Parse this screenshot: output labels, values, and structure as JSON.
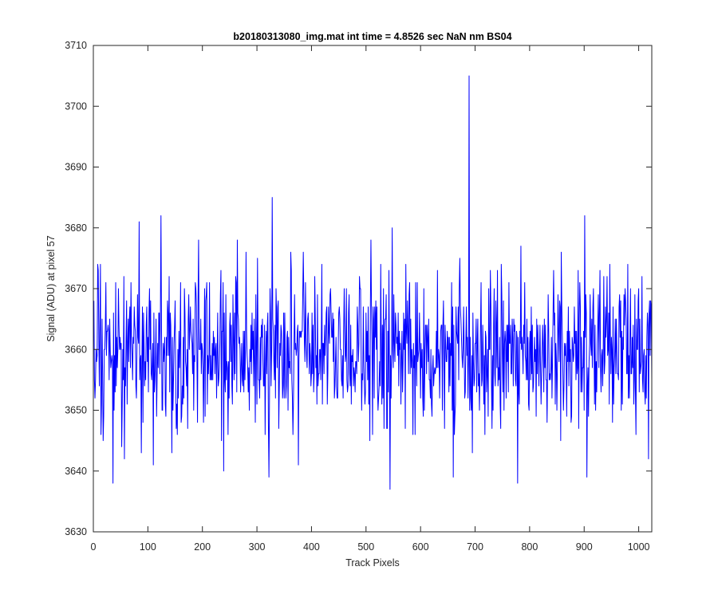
{
  "chart_data": {
    "type": "line",
    "title": "b20180313080_img.mat int time = 4.8526 sec  NaN nm BS04",
    "xlabel": "Track Pixels",
    "ylabel": "Signal (ADU) at pixel 57",
    "xlim": [
      0,
      1024
    ],
    "ylim": [
      3630,
      3710
    ],
    "xticks": [
      0,
      100,
      200,
      300,
      400,
      500,
      600,
      700,
      800,
      900,
      1000
    ],
    "yticks": [
      3630,
      3640,
      3650,
      3660,
      3670,
      3680,
      3690,
      3700,
      3710
    ],
    "grid": false,
    "line_color": "#0000ff",
    "series": [
      {
        "color": "#0000ff",
        "x_start": 1,
        "x_step": 1,
        "num_points": 1024,
        "mean": 3660,
        "min": 3637,
        "max": 3705,
        "y_anchor_points": [
          {
            "x": 1,
            "y": 3668
          },
          {
            "x": 13,
            "y": 3674
          },
          {
            "x": 14,
            "y": 3646
          },
          {
            "x": 36,
            "y": 3638
          },
          {
            "x": 57,
            "y": 3642
          },
          {
            "x": 84,
            "y": 3681
          },
          {
            "x": 110,
            "y": 3641
          },
          {
            "x": 124,
            "y": 3682
          },
          {
            "x": 193,
            "y": 3678
          },
          {
            "x": 239,
            "y": 3640
          },
          {
            "x": 264,
            "y": 3678
          },
          {
            "x": 322,
            "y": 3639
          },
          {
            "x": 328,
            "y": 3685
          },
          {
            "x": 376,
            "y": 3641
          },
          {
            "x": 544,
            "y": 3637
          },
          {
            "x": 548,
            "y": 3680
          },
          {
            "x": 689,
            "y": 3705
          },
          {
            "x": 690,
            "y": 3650
          },
          {
            "x": 778,
            "y": 3638
          },
          {
            "x": 901,
            "y": 3682
          },
          {
            "x": 905,
            "y": 3639
          },
          {
            "x": 1018,
            "y": 3642
          },
          {
            "x": 1024,
            "y": 3655
          }
        ]
      }
    ]
  }
}
